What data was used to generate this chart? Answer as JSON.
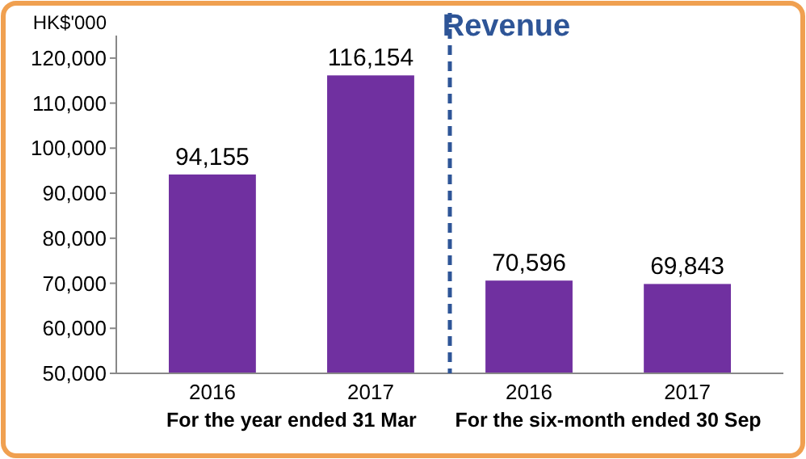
{
  "chart_data": {
    "type": "bar",
    "title": "Revenue",
    "ylabel": "HK$'000",
    "categories": [
      "2016",
      "2017",
      "2016",
      "2017"
    ],
    "values": [
      94155,
      116154,
      70596,
      69843
    ],
    "color": "#7030a0",
    "ylim": [
      50000,
      125000
    ],
    "yticks": [
      {
        "value": 50000,
        "label": "50,000"
      },
      {
        "value": 60000,
        "label": "60,000"
      },
      {
        "value": 70000,
        "label": "70,000"
      },
      {
        "value": 80000,
        "label": "80,000"
      },
      {
        "value": 90000,
        "label": "90,000"
      },
      {
        "value": 100000,
        "label": "100,000"
      },
      {
        "value": 110000,
        "label": "110,000"
      },
      {
        "value": 120000,
        "label": "120,000"
      }
    ],
    "value_labels": [
      "94,155",
      "116,154",
      "70,596",
      "69,843"
    ],
    "grid": false,
    "annotations": [
      "For the year ended 31 Mar",
      "For the six-month ended 30 Sep"
    ]
  }
}
